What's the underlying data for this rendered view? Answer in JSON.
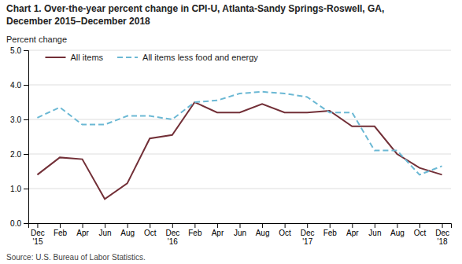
{
  "chart_data": {
    "type": "line",
    "title": [
      "Chart 1. Over-the-year percent change in CPI-U, Atlanta-Sandy Springs-Roswell, GA,",
      "December 2015–December 2018"
    ],
    "y_label": "Percent change",
    "source": "Source: U.S. Bureau of Labor Statistics.",
    "categories": [
      "Dec\n'15",
      "Feb",
      "Apr",
      "Jun",
      "Aug",
      "Oct",
      "Dec\n'16",
      "Feb",
      "Apr",
      "Jun",
      "Aug",
      "Oct",
      "Dec\n'17",
      "Feb",
      "Apr",
      "Jun",
      "Aug",
      "Oct",
      "Dec\n'18"
    ],
    "series": [
      {
        "name": "All items",
        "color": "#722F37",
        "line_style": "solid",
        "values": [
          1.4,
          1.9,
          1.85,
          0.7,
          1.15,
          2.45,
          2.55,
          3.5,
          3.2,
          3.2,
          3.45,
          3.2,
          3.2,
          3.25,
          2.8,
          2.8,
          2.0,
          1.6,
          1.4
        ]
      },
      {
        "name": "All items less food and energy",
        "color": "#6BB8D4",
        "line_style": "dashed",
        "values": [
          3.05,
          3.35,
          2.85,
          2.85,
          3.1,
          3.1,
          3.0,
          3.5,
          3.55,
          3.75,
          3.8,
          3.75,
          3.65,
          3.2,
          3.2,
          2.1,
          2.1,
          1.4,
          1.65
        ]
      }
    ],
    "ylim": [
      0,
      5
    ],
    "yticks": [
      {
        "value": 0,
        "label": "0.0"
      },
      {
        "value": 1,
        "label": "1.0"
      },
      {
        "value": 2,
        "label": "2.0"
      },
      {
        "value": 3,
        "label": "3.0"
      },
      {
        "value": 4,
        "label": "4.0"
      },
      {
        "value": 5,
        "label": "5.0"
      }
    ],
    "grid": true,
    "legend": "upper left"
  }
}
